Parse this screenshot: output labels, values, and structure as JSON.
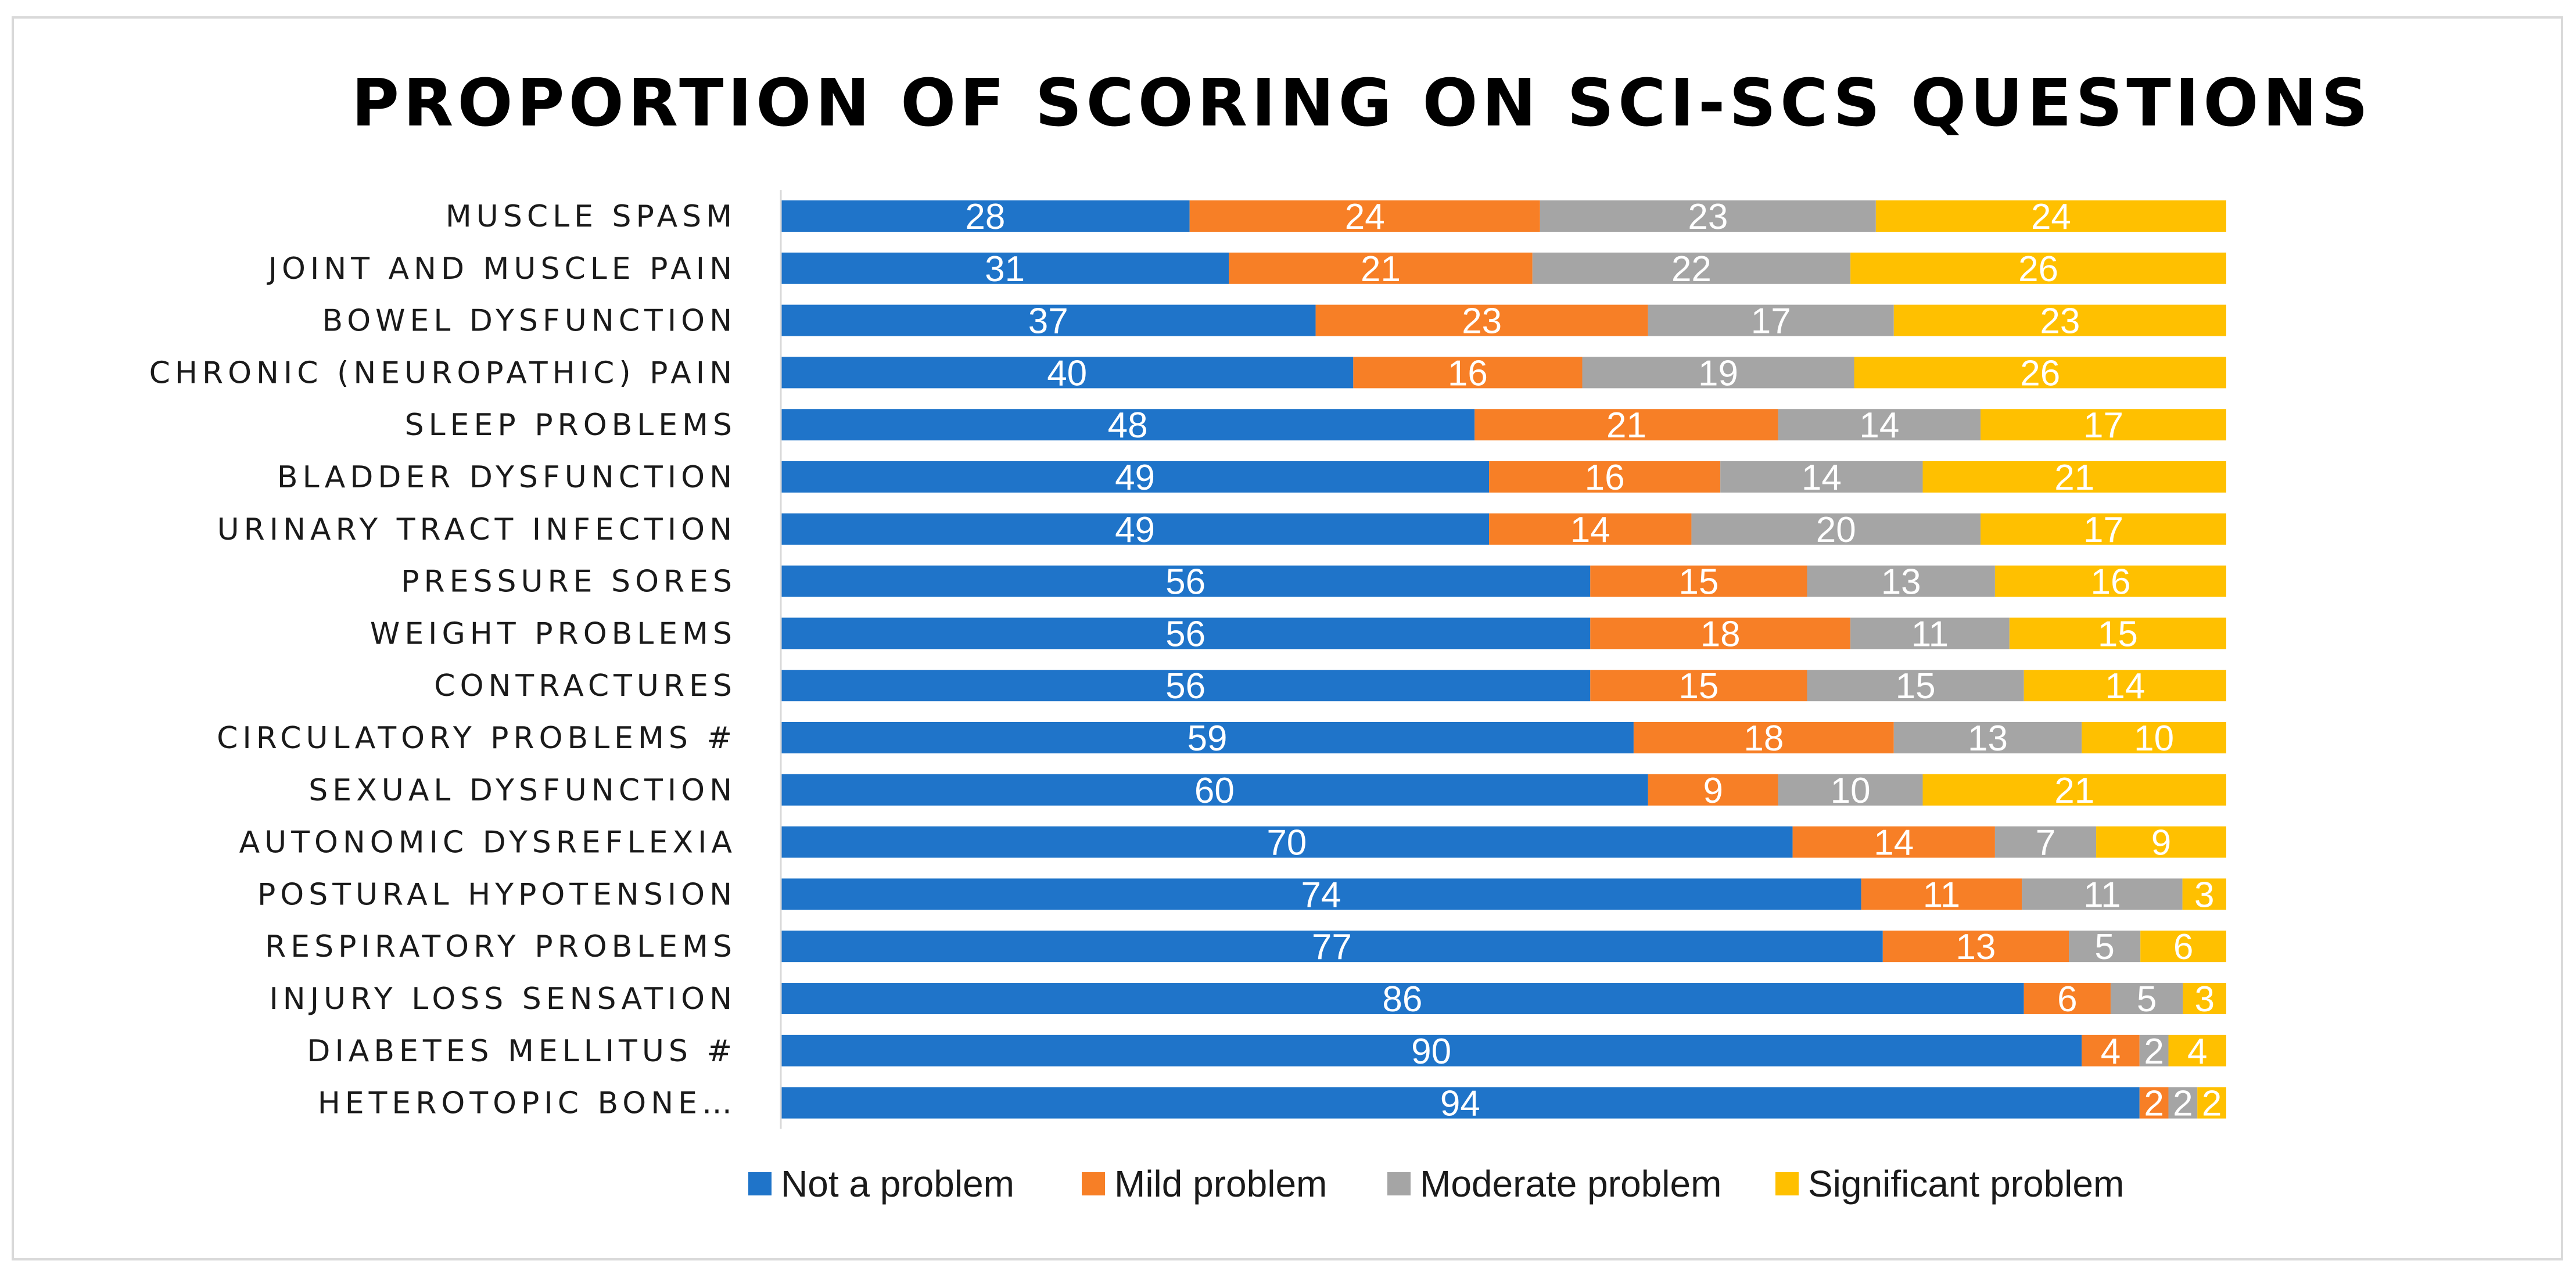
{
  "chart_data": {
    "type": "bar",
    "orientation": "horizontal",
    "stacked": "percent",
    "title": "PROPORTION OF SCORING ON SCI-SCS QUESTIONS",
    "xlabel": "",
    "ylabel": "",
    "grid": false,
    "legend_position": "bottom",
    "categories": [
      "MUSCLE SPASM",
      "JOINT AND MUSCLE PAIN",
      "BOWEL DYSFUNCTION",
      "CHRONIC (NEUROPATHIC) PAIN",
      "SLEEP PROBLEMS",
      "BLADDER DYSFUNCTION",
      "URINARY TRACT INFECTION",
      "PRESSURE SORES",
      "WEIGHT PROBLEMS",
      "CONTRACTURES",
      "CIRCULATORY PROBLEMS #",
      "SEXUAL DYSFUNCTION",
      "AUTONOMIC DYSREFLEXIA",
      "POSTURAL HYPOTENSION",
      "RESPIRATORY PROBLEMS",
      "INJURY LOSS SENSATION",
      "DIABETES MELLITUS #",
      "HETEROTOPIC BONE…"
    ],
    "series": [
      {
        "name": "Not a problem",
        "color": "#1f74c9",
        "values": [
          28,
          31,
          37,
          40,
          48,
          49,
          49,
          56,
          56,
          56,
          59,
          60,
          70,
          74,
          77,
          86,
          90,
          94
        ]
      },
      {
        "name": "Mild problem",
        "color": "#f77f26",
        "values": [
          24,
          21,
          23,
          16,
          21,
          16,
          14,
          15,
          18,
          15,
          18,
          9,
          14,
          11,
          13,
          6,
          4,
          2
        ]
      },
      {
        "name": "Moderate problem",
        "color": "#a5a5a5",
        "values": [
          23,
          22,
          17,
          19,
          14,
          14,
          20,
          13,
          11,
          15,
          13,
          10,
          7,
          11,
          5,
          5,
          2,
          2
        ]
      },
      {
        "name": "Significant problem",
        "color": "#ffc000",
        "values": [
          24,
          26,
          23,
          26,
          17,
          21,
          17,
          16,
          15,
          14,
          10,
          21,
          9,
          3,
          6,
          3,
          4,
          2
        ]
      }
    ]
  }
}
